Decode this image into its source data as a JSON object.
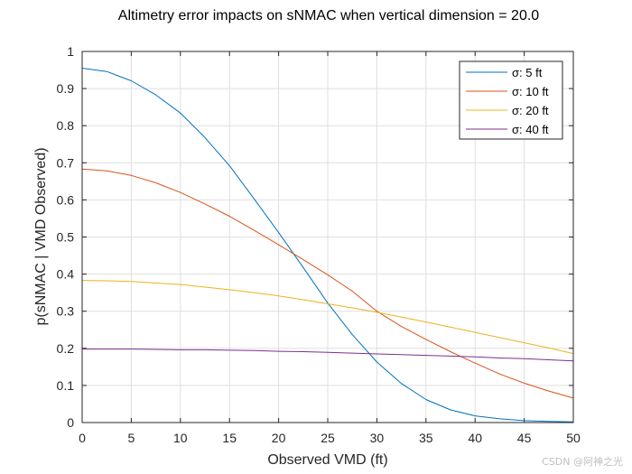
{
  "chart_data": {
    "type": "line",
    "title": "Altimetry error impacts on sNMAC when vertical dimension = 20.0",
    "xlabel": "Observed VMD (ft)",
    "ylabel": "p(sNMAC | VMD Observed)",
    "xlim": [
      0,
      50
    ],
    "ylim": [
      0,
      1
    ],
    "x_ticks": [
      0,
      5,
      10,
      15,
      20,
      25,
      30,
      35,
      40,
      45,
      50
    ],
    "y_ticks": [
      0,
      0.1,
      0.2,
      0.3,
      0.4,
      0.5,
      0.6,
      0.7,
      0.8,
      0.9,
      1
    ],
    "grid": true,
    "legend_position": "top-right",
    "x": [
      0,
      2.5,
      5,
      7.5,
      10,
      12.5,
      15,
      17.5,
      20,
      22.5,
      25,
      27.5,
      30,
      32.5,
      35,
      37.5,
      40,
      42.5,
      45,
      47.5,
      50
    ],
    "series": [
      {
        "name": "σ: 5 ft",
        "color": "#0072BD",
        "values": [
          0.955,
          0.946,
          0.921,
          0.883,
          0.834,
          0.768,
          0.692,
          0.603,
          0.512,
          0.418,
          0.322,
          0.237,
          0.163,
          0.105,
          0.062,
          0.034,
          0.018,
          0.01,
          0.005,
          0.003,
          0.002
        ]
      },
      {
        "name": "σ: 10 ft",
        "color": "#D95319",
        "values": [
          0.683,
          0.678,
          0.666,
          0.646,
          0.62,
          0.589,
          0.556,
          0.518,
          0.479,
          0.439,
          0.398,
          0.354,
          0.3,
          0.259,
          0.224,
          0.191,
          0.16,
          0.131,
          0.106,
          0.085,
          0.066
        ]
      },
      {
        "name": "σ: 20 ft",
        "color": "#EDB120",
        "values": [
          0.383,
          0.382,
          0.38,
          0.376,
          0.372,
          0.365,
          0.358,
          0.35,
          0.341,
          0.331,
          0.32,
          0.309,
          0.297,
          0.284,
          0.271,
          0.257,
          0.243,
          0.229,
          0.215,
          0.201,
          0.186
        ]
      },
      {
        "name": "σ: 40 ft",
        "color": "#7E2F8E",
        "values": [
          0.198,
          0.198,
          0.198,
          0.197,
          0.196,
          0.196,
          0.195,
          0.194,
          0.192,
          0.191,
          0.189,
          0.187,
          0.185,
          0.183,
          0.181,
          0.179,
          0.177,
          0.174,
          0.172,
          0.169,
          0.166
        ]
      }
    ]
  },
  "watermark": "CSDN @阿神之光"
}
